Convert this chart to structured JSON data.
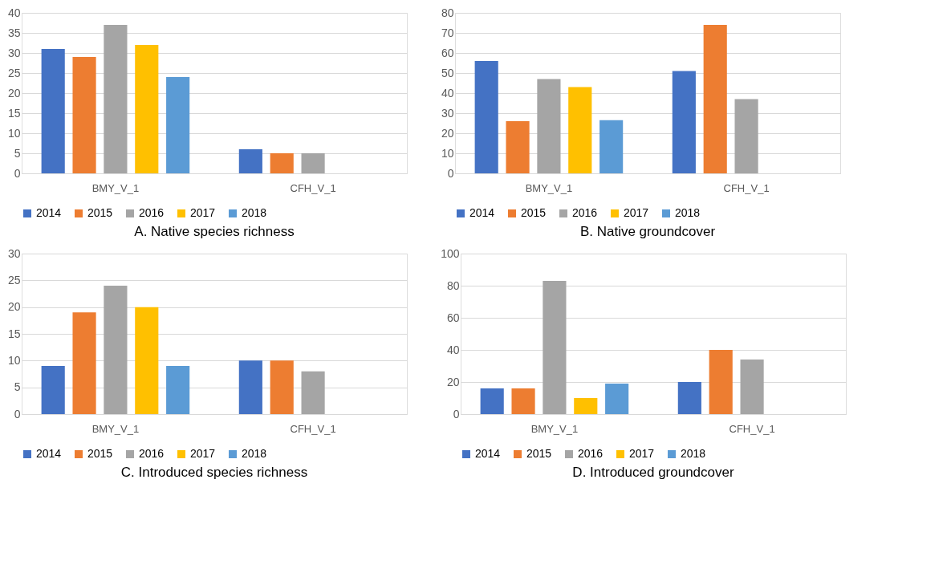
{
  "chart_data": [
    {
      "type": "bar",
      "title": "A. Native species richness",
      "categories": [
        "BMY_V_1",
        "CFH_V_1"
      ],
      "ylim": [
        0,
        40
      ],
      "yticks": [
        0,
        5,
        10,
        15,
        20,
        25,
        30,
        35,
        40
      ],
      "grid": "y",
      "legend": "bottom",
      "series": [
        {
          "name": "2014",
          "color": "#4472c4",
          "values": [
            31,
            6
          ]
        },
        {
          "name": "2015",
          "color": "#ed7d31",
          "values": [
            29,
            5
          ]
        },
        {
          "name": "2016",
          "color": "#a5a5a5",
          "values": [
            37,
            5
          ]
        },
        {
          "name": "2017",
          "color": "#ffc000",
          "values": [
            32,
            null
          ]
        },
        {
          "name": "2018",
          "color": "#5b9bd5",
          "values": [
            24,
            null
          ]
        }
      ]
    },
    {
      "type": "bar",
      "title": "B. Native groundcover",
      "categories": [
        "BMY_V_1",
        "CFH_V_1"
      ],
      "ylim": [
        0,
        80
      ],
      "yticks": [
        0,
        10,
        20,
        30,
        40,
        50,
        60,
        70,
        80
      ],
      "grid": "y",
      "legend": "bottom",
      "series": [
        {
          "name": "2014",
          "color": "#4472c4",
          "values": [
            56,
            51
          ]
        },
        {
          "name": "2015",
          "color": "#ed7d31",
          "values": [
            26,
            74
          ]
        },
        {
          "name": "2016",
          "color": "#a5a5a5",
          "values": [
            47,
            37
          ]
        },
        {
          "name": "2017",
          "color": "#ffc000",
          "values": [
            43,
            null
          ]
        },
        {
          "name": "2018",
          "color": "#5b9bd5",
          "values": [
            26.5,
            null
          ]
        }
      ]
    },
    {
      "type": "bar",
      "title": "C. Introduced species richness",
      "categories": [
        "BMY_V_1",
        "CFH_V_1"
      ],
      "ylim": [
        0,
        30
      ],
      "yticks": [
        0,
        5,
        10,
        15,
        20,
        25,
        30
      ],
      "grid": "y",
      "legend": "bottom",
      "series": [
        {
          "name": "2014",
          "color": "#4472c4",
          "values": [
            9,
            10
          ]
        },
        {
          "name": "2015",
          "color": "#ed7d31",
          "values": [
            19,
            10
          ]
        },
        {
          "name": "2016",
          "color": "#a5a5a5",
          "values": [
            24,
            8
          ]
        },
        {
          "name": "2017",
          "color": "#ffc000",
          "values": [
            20,
            null
          ]
        },
        {
          "name": "2018",
          "color": "#5b9bd5",
          "values": [
            9,
            null
          ]
        }
      ]
    },
    {
      "type": "bar",
      "title": "D. Introduced groundcover",
      "categories": [
        "BMY_V_1",
        "CFH_V_1"
      ],
      "ylim": [
        0,
        100
      ],
      "yticks": [
        0,
        20,
        40,
        60,
        80,
        100
      ],
      "grid": "y",
      "legend": "bottom",
      "series": [
        {
          "name": "2014",
          "color": "#4472c4",
          "values": [
            16,
            20
          ]
        },
        {
          "name": "2015",
          "color": "#ed7d31",
          "values": [
            16,
            40
          ]
        },
        {
          "name": "2016",
          "color": "#a5a5a5",
          "values": [
            83,
            34
          ]
        },
        {
          "name": "2017",
          "color": "#ffc000",
          "values": [
            10,
            null
          ]
        },
        {
          "name": "2018",
          "color": "#5b9bd5",
          "values": [
            19,
            null
          ]
        }
      ]
    }
  ]
}
